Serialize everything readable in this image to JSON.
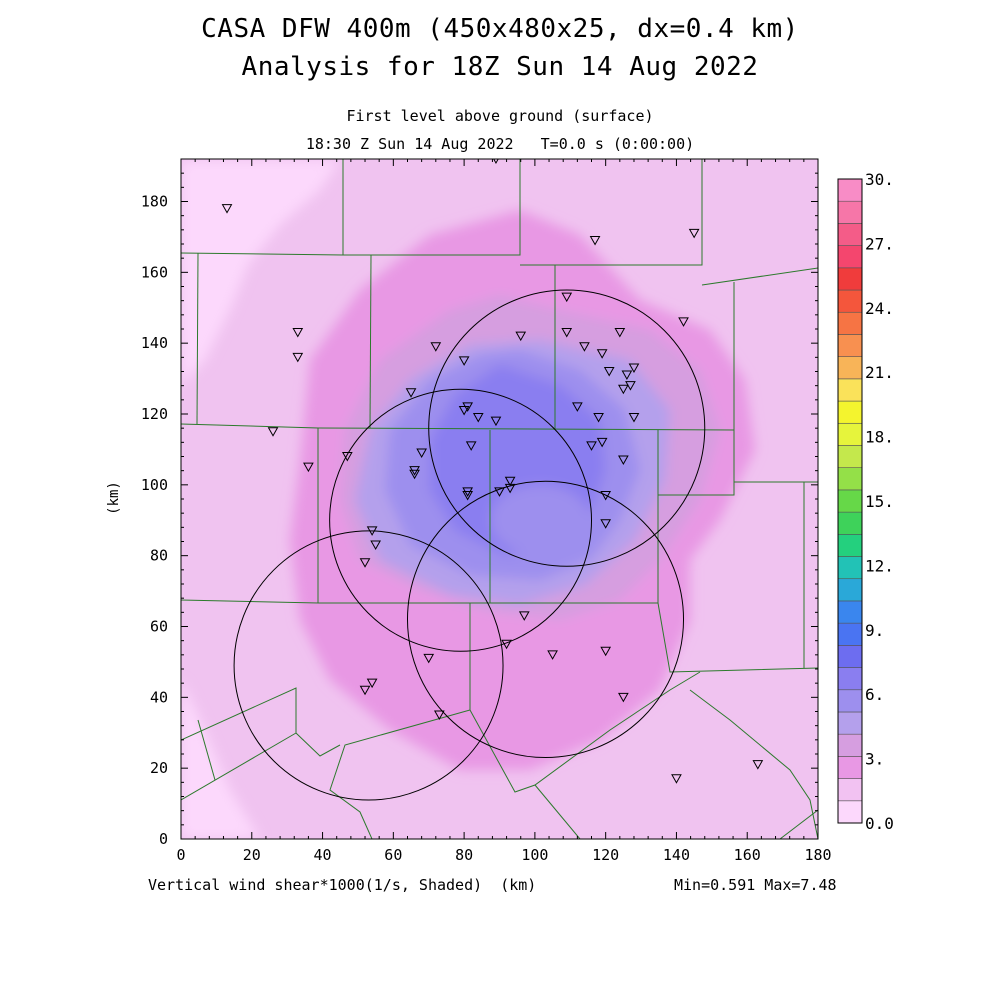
{
  "title_line1": "CASA DFW 400m (450x480x25, dx=0.4 km)",
  "title_line2": "Analysis for 18Z Sun 14 Aug 2022",
  "subtitle_line1": "First level above ground (surface)",
  "subtitle_line2": "18:30 Z Sun 14 Aug 2022   T=0.0 s (0:00:00)",
  "footer_left": "Vertical wind shear*1000(1/s, Shaded)  (km)",
  "footer_right": "Min=0.591 Max=7.48",
  "chart_data": {
    "type": "heatmap",
    "field": "Vertical wind shear*1000",
    "xlabel": "(km)",
    "ylabel": "(km)",
    "xlim": [
      0,
      180
    ],
    "ylim": [
      0,
      192
    ],
    "x_ticks": [
      0,
      20,
      40,
      60,
      80,
      100,
      120,
      140,
      160,
      180
    ],
    "y_ticks": [
      0,
      20,
      40,
      60,
      80,
      100,
      120,
      140,
      160,
      180
    ],
    "min": 0.591,
    "max": 7.48,
    "colorbar": {
      "range": [
        0,
        30
      ],
      "step": 1.5,
      "labels": [
        "0.0",
        "3.",
        "6.",
        "9.",
        "12.",
        "15.",
        "18.",
        "21.",
        "24.",
        "27.",
        "30."
      ],
      "colors": [
        "#fcd8fc",
        "#f2c2f2",
        "#e898e4",
        "#d69ee0",
        "#b4a0ec",
        "#9d8fee",
        "#8a7ef0",
        "#6d6df0",
        "#4a74f2",
        "#3a86ee",
        "#2aa8d8",
        "#22c2b6",
        "#24d07e",
        "#3ed25a",
        "#66d848",
        "#94e048",
        "#c4e84c",
        "#e6f43c",
        "#f4f42e",
        "#fae25a",
        "#f8b458",
        "#f89050",
        "#f67444",
        "#f4563c",
        "#f03c3c",
        "#f4466e",
        "#f45c88",
        "#f676a8",
        "#f88cc6"
      ]
    },
    "radar_rings": [
      {
        "center": [
          109,
          116
        ],
        "radius": 39
      },
      {
        "center": [
          79,
          90
        ],
        "radius": 37
      },
      {
        "center": [
          103,
          62
        ],
        "radius": 39
      },
      {
        "center": [
          53,
          49
        ],
        "radius": 38
      }
    ],
    "stations": [
      [
        89,
        192
      ],
      [
        13,
        178
      ],
      [
        117,
        169
      ],
      [
        145,
        171
      ],
      [
        33,
        143
      ],
      [
        33,
        136
      ],
      [
        109,
        153
      ],
      [
        142,
        146
      ],
      [
        72,
        139
      ],
      [
        96,
        142
      ],
      [
        109,
        143
      ],
      [
        114,
        139
      ],
      [
        119,
        137
      ],
      [
        124,
        143
      ],
      [
        80,
        135
      ],
      [
        121,
        132
      ],
      [
        126,
        131
      ],
      [
        127,
        128
      ],
      [
        128,
        133
      ],
      [
        125,
        127
      ],
      [
        65,
        126
      ],
      [
        80,
        121
      ],
      [
        81,
        122
      ],
      [
        84,
        119
      ],
      [
        89,
        118
      ],
      [
        112,
        122
      ],
      [
        118,
        119
      ],
      [
        128,
        119
      ],
      [
        26,
        115
      ],
      [
        36,
        105
      ],
      [
        47,
        108
      ],
      [
        68,
        109
      ],
      [
        82,
        111
      ],
      [
        116,
        111
      ],
      [
        119,
        112
      ],
      [
        125,
        107
      ],
      [
        66,
        104
      ],
      [
        66,
        103
      ],
      [
        93,
        101
      ],
      [
        93,
        99
      ],
      [
        81,
        98
      ],
      [
        81,
        97
      ],
      [
        90,
        98
      ],
      [
        120,
        97
      ],
      [
        120,
        89
      ],
      [
        54,
        87
      ],
      [
        55,
        83
      ],
      [
        52,
        78
      ],
      [
        97,
        63
      ],
      [
        92,
        55
      ],
      [
        105,
        52
      ],
      [
        120,
        53
      ],
      [
        70,
        51
      ],
      [
        54,
        44
      ],
      [
        52,
        42
      ],
      [
        73,
        35
      ],
      [
        125,
        40
      ],
      [
        140,
        17
      ],
      [
        163,
        21
      ]
    ]
  }
}
